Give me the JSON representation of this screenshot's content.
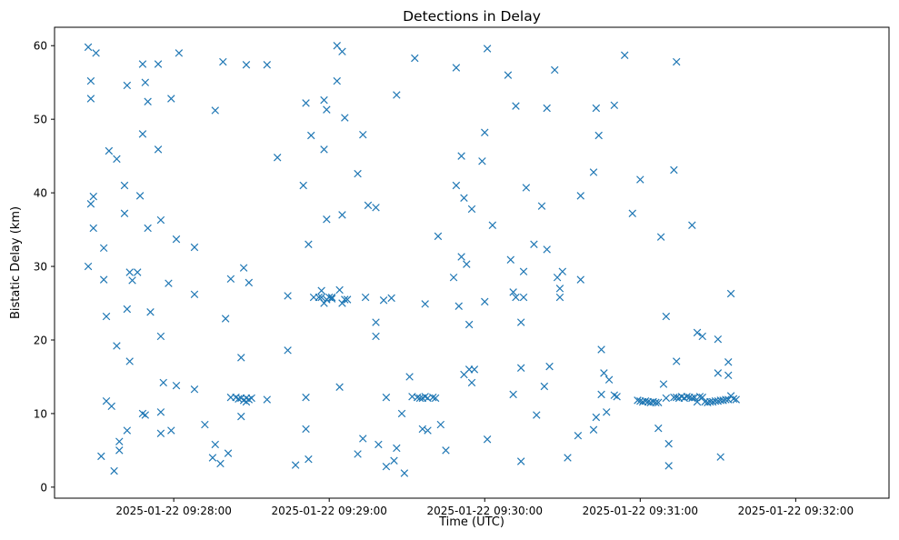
{
  "chart_data": {
    "type": "scatter",
    "title": "Detections in Delay",
    "xlabel": "Time (UTC)",
    "ylabel": "Bistatic Delay (km)",
    "x_unit": "time",
    "xlim": [
      "2025-01-22 09:27:14",
      "2025-01-22 09:32:36"
    ],
    "ylim": [
      -1.5,
      62.5
    ],
    "x_ticks": [
      "2025-01-22 09:28:00",
      "2025-01-22 09:29:00",
      "2025-01-22 09:30:00",
      "2025-01-22 09:31:00",
      "2025-01-22 09:32:00"
    ],
    "y_ticks": [
      0,
      10,
      20,
      30,
      40,
      50,
      60
    ],
    "marker": "x",
    "color": "#1f77b4",
    "grid": false,
    "legend": "none",
    "series": [
      {
        "points": [
          [
            "09:27:27",
            30
          ],
          [
            "09:27:27",
            59.8
          ],
          [
            "09:27:28",
            38.5
          ],
          [
            "09:27:28",
            55.2
          ],
          [
            "09:27:28",
            52.8
          ],
          [
            "09:27:29",
            39.5
          ],
          [
            "09:27:29",
            35.2
          ],
          [
            "09:27:30",
            59
          ],
          [
            "09:27:32",
            4.2
          ],
          [
            "09:27:33",
            32.5
          ],
          [
            "09:27:33",
            28.2
          ],
          [
            "09:27:34",
            11.7
          ],
          [
            "09:27:34",
            23.2
          ],
          [
            "09:27:35",
            45.7
          ],
          [
            "09:27:36",
            11
          ],
          [
            "09:27:37",
            2.2
          ],
          [
            "09:27:38",
            19.2
          ],
          [
            "09:27:38",
            44.6
          ],
          [
            "09:27:39",
            6.2
          ],
          [
            "09:27:39",
            5
          ],
          [
            "09:27:41",
            37.2
          ],
          [
            "09:27:41",
            41
          ],
          [
            "09:27:42",
            24.2
          ],
          [
            "09:27:42",
            7.7
          ],
          [
            "09:27:42",
            54.6
          ],
          [
            "09:27:43",
            17.1
          ],
          [
            "09:27:43",
            29.2
          ],
          [
            "09:27:44",
            28.1
          ],
          [
            "09:27:46",
            29.2
          ],
          [
            "09:27:47",
            39.6
          ],
          [
            "09:27:48",
            10
          ],
          [
            "09:27:48",
            57.5
          ],
          [
            "09:27:48",
            48
          ],
          [
            "09:27:49",
            9.8
          ],
          [
            "09:27:49",
            55
          ],
          [
            "09:27:50",
            52.4
          ],
          [
            "09:27:50",
            35.2
          ],
          [
            "09:27:51",
            23.8
          ],
          [
            "09:27:54",
            57.5
          ],
          [
            "09:27:54",
            45.9
          ],
          [
            "09:27:55",
            36.3
          ],
          [
            "09:27:55",
            20.5
          ],
          [
            "09:27:55",
            7.3
          ],
          [
            "09:27:55",
            10.2
          ],
          [
            "09:27:56",
            14.2
          ],
          [
            "09:27:58",
            27.7
          ],
          [
            "09:27:59",
            52.8
          ],
          [
            "09:27:59",
            7.7
          ],
          [
            "09:28:01",
            33.7
          ],
          [
            "09:28:01",
            13.8
          ],
          [
            "09:28:02",
            59
          ],
          [
            "09:28:08",
            13.3
          ],
          [
            "09:28:08",
            26.2
          ],
          [
            "09:28:08",
            32.6
          ],
          [
            "09:28:12",
            8.5
          ],
          [
            "09:28:15",
            4
          ],
          [
            "09:28:16",
            51.2
          ],
          [
            "09:28:16",
            5.8
          ],
          [
            "09:28:18",
            3.2
          ],
          [
            "09:28:19",
            57.8
          ],
          [
            "09:28:20",
            22.9
          ],
          [
            "09:28:21",
            4.6
          ],
          [
            "09:28:22",
            28.3
          ],
          [
            "09:28:22",
            12.2
          ],
          [
            "09:28:24",
            12.2
          ],
          [
            "09:28:25",
            12
          ],
          [
            "09:28:26",
            9.6
          ],
          [
            "09:28:26",
            17.6
          ],
          [
            "09:28:26",
            12.1
          ],
          [
            "09:28:27",
            29.8
          ],
          [
            "09:28:27",
            11.8
          ],
          [
            "09:28:28",
            57.4
          ],
          [
            "09:28:28",
            11.6
          ],
          [
            "09:28:28",
            12.1
          ],
          [
            "09:28:29",
            27.8
          ],
          [
            "09:28:29",
            11.9
          ],
          [
            "09:28:30",
            12.1
          ],
          [
            "09:28:36",
            57.4
          ],
          [
            "09:28:36",
            11.9
          ],
          [
            "09:28:40",
            44.8
          ],
          [
            "09:28:44",
            26
          ],
          [
            "09:28:44",
            18.6
          ],
          [
            "09:28:47",
            3
          ],
          [
            "09:28:50",
            41
          ],
          [
            "09:28:51",
            52.2
          ],
          [
            "09:28:51",
            12.2
          ],
          [
            "09:28:51",
            7.9
          ],
          [
            "09:28:52",
            33
          ],
          [
            "09:28:52",
            3.8
          ],
          [
            "09:28:53",
            47.8
          ],
          [
            "09:28:54",
            25.8
          ],
          [
            "09:28:56",
            25.8
          ],
          [
            "09:28:57",
            26.7
          ],
          [
            "09:28:57",
            25.8
          ],
          [
            "09:28:58",
            25
          ],
          [
            "09:28:58",
            45.9
          ],
          [
            "09:28:58",
            52.6
          ],
          [
            "09:28:59",
            51.3
          ],
          [
            "09:28:59",
            36.4
          ],
          [
            "09:28:59",
            25.5
          ],
          [
            "09:29:00",
            25.8
          ],
          [
            "09:29:01",
            25.6
          ],
          [
            "09:29:01",
            25.8
          ],
          [
            "09:29:03",
            60
          ],
          [
            "09:29:03",
            55.2
          ],
          [
            "09:29:04",
            13.6
          ],
          [
            "09:29:04",
            26.8
          ],
          [
            "09:29:05",
            25
          ],
          [
            "09:29:05",
            37
          ],
          [
            "09:29:05",
            59.2
          ],
          [
            "09:29:06",
            25.5
          ],
          [
            "09:29:06",
            50.2
          ],
          [
            "09:29:07",
            25.5
          ],
          [
            "09:29:11",
            42.6
          ],
          [
            "09:29:11",
            4.5
          ],
          [
            "09:29:13",
            47.9
          ],
          [
            "09:29:13",
            6.6
          ],
          [
            "09:29:14",
            25.8
          ],
          [
            "09:29:15",
            38.3
          ],
          [
            "09:29:18",
            22.4
          ],
          [
            "09:29:18",
            38
          ],
          [
            "09:29:18",
            20.5
          ],
          [
            "09:29:19",
            5.8
          ],
          [
            "09:29:21",
            25.4
          ],
          [
            "09:29:22",
            12.2
          ],
          [
            "09:29:22",
            2.8
          ],
          [
            "09:29:24",
            25.7
          ],
          [
            "09:29:25",
            3.6
          ],
          [
            "09:29:26",
            5.3
          ],
          [
            "09:29:26",
            53.3
          ],
          [
            "09:29:28",
            10
          ],
          [
            "09:29:29",
            1.9
          ],
          [
            "09:29:31",
            15
          ],
          [
            "09:29:32",
            12.3
          ],
          [
            "09:29:33",
            58.3
          ],
          [
            "09:29:34",
            12.2
          ],
          [
            "09:29:35",
            12.1
          ],
          [
            "09:29:36",
            12.1
          ],
          [
            "09:29:36",
            7.9
          ],
          [
            "09:29:37",
            12.3
          ],
          [
            "09:29:37",
            24.9
          ],
          [
            "09:29:38",
            12.1
          ],
          [
            "09:29:38",
            7.7
          ],
          [
            "09:29:40",
            12.2
          ],
          [
            "09:29:41",
            12.1
          ],
          [
            "09:29:42",
            34.1
          ],
          [
            "09:29:43",
            8.5
          ],
          [
            "09:29:45",
            5
          ],
          [
            "09:29:48",
            28.5
          ],
          [
            "09:29:49",
            41
          ],
          [
            "09:29:49",
            57
          ],
          [
            "09:29:50",
            24.6
          ],
          [
            "09:29:51",
            45
          ],
          [
            "09:29:51",
            31.3
          ],
          [
            "09:29:52",
            15.3
          ],
          [
            "09:29:52",
            39.3
          ],
          [
            "09:29:53",
            30.3
          ],
          [
            "09:29:54",
            16
          ],
          [
            "09:29:54",
            22.1
          ],
          [
            "09:29:55",
            37.8
          ],
          [
            "09:29:55",
            14.2
          ],
          [
            "09:29:56",
            16
          ],
          [
            "09:29:59",
            44.3
          ],
          [
            "09:30:00",
            48.2
          ],
          [
            "09:30:00",
            25.2
          ],
          [
            "09:30:01",
            6.5
          ],
          [
            "09:30:01",
            59.6
          ],
          [
            "09:30:03",
            35.6
          ],
          [
            "09:30:09",
            56
          ],
          [
            "09:30:10",
            30.9
          ],
          [
            "09:30:11",
            12.6
          ],
          [
            "09:30:11",
            26.5
          ],
          [
            "09:30:12",
            51.8
          ],
          [
            "09:30:12",
            25.8
          ],
          [
            "09:30:14",
            22.4
          ],
          [
            "09:30:14",
            16.2
          ],
          [
            "09:30:14",
            3.5
          ],
          [
            "09:30:15",
            25.8
          ],
          [
            "09:30:15",
            29.3
          ],
          [
            "09:30:16",
            40.7
          ],
          [
            "09:30:19",
            33
          ],
          [
            "09:30:20",
            9.8
          ],
          [
            "09:30:22",
            38.2
          ],
          [
            "09:30:23",
            13.7
          ],
          [
            "09:30:24",
            32.3
          ],
          [
            "09:30:24",
            51.5
          ],
          [
            "09:30:25",
            16.4
          ],
          [
            "09:30:27",
            56.7
          ],
          [
            "09:30:28",
            28.5
          ],
          [
            "09:30:29",
            25.8
          ],
          [
            "09:30:29",
            27
          ],
          [
            "09:30:30",
            29.3
          ],
          [
            "09:30:32",
            4
          ],
          [
            "09:30:36",
            7
          ],
          [
            "09:30:37",
            28.2
          ],
          [
            "09:30:37",
            39.6
          ],
          [
            "09:30:42",
            42.8
          ],
          [
            "09:30:42",
            7.8
          ],
          [
            "09:30:43",
            51.5
          ],
          [
            "09:30:43",
            9.5
          ],
          [
            "09:30:44",
            47.8
          ],
          [
            "09:30:45",
            18.7
          ],
          [
            "09:30:45",
            12.6
          ],
          [
            "09:30:46",
            15.5
          ],
          [
            "09:30:47",
            10.2
          ],
          [
            "09:30:48",
            14.6
          ],
          [
            "09:30:50",
            51.9
          ],
          [
            "09:30:50",
            12.5
          ],
          [
            "09:30:51",
            12.3
          ],
          [
            "09:30:54",
            58.7
          ],
          [
            "09:30:57",
            37.2
          ],
          [
            "09:30:59",
            11.8
          ],
          [
            "09:31:00",
            41.8
          ],
          [
            "09:31:00",
            11.7
          ],
          [
            "09:31:01",
            11.6
          ],
          [
            "09:31:02",
            11.7
          ],
          [
            "09:31:03",
            11.6
          ],
          [
            "09:31:04",
            11.5
          ],
          [
            "09:31:05",
            11.6
          ],
          [
            "09:31:06",
            11.5
          ],
          [
            "09:31:07",
            8
          ],
          [
            "09:31:07",
            11.5
          ],
          [
            "09:31:08",
            34
          ],
          [
            "09:31:09",
            14
          ],
          [
            "09:31:10",
            23.2
          ],
          [
            "09:31:10",
            12.1
          ],
          [
            "09:31:11",
            5.9
          ],
          [
            "09:31:11",
            2.9
          ],
          [
            "09:31:13",
            43.1
          ],
          [
            "09:31:13",
            12.2
          ],
          [
            "09:31:14",
            57.8
          ],
          [
            "09:31:14",
            17.1
          ],
          [
            "09:31:14",
            12.2
          ],
          [
            "09:31:15",
            12.1
          ],
          [
            "09:31:16",
            12.3
          ],
          [
            "09:31:17",
            12.1
          ],
          [
            "09:31:18",
            12.3
          ],
          [
            "09:31:19",
            12.2
          ],
          [
            "09:31:20",
            35.6
          ],
          [
            "09:31:20",
            12.1
          ],
          [
            "09:31:21",
            12.2
          ],
          [
            "09:31:22",
            21
          ],
          [
            "09:31:22",
            11.6
          ],
          [
            "09:31:23",
            12.3
          ],
          [
            "09:31:24",
            20.5
          ],
          [
            "09:31:24",
            12.2
          ],
          [
            "09:31:25",
            11.6
          ],
          [
            "09:31:26",
            11.5
          ],
          [
            "09:31:27",
            11.6
          ],
          [
            "09:31:28",
            11.6
          ],
          [
            "09:31:29",
            11.7
          ],
          [
            "09:31:30",
            15.5
          ],
          [
            "09:31:30",
            20.1
          ],
          [
            "09:31:30",
            11.7
          ],
          [
            "09:31:31",
            4.1
          ],
          [
            "09:31:31",
            11.8
          ],
          [
            "09:31:32",
            11.8
          ],
          [
            "09:31:33",
            11.9
          ],
          [
            "09:31:34",
            17
          ],
          [
            "09:31:34",
            15.2
          ],
          [
            "09:31:34",
            11.9
          ],
          [
            "09:31:35",
            26.3
          ],
          [
            "09:31:35",
            12.4
          ],
          [
            "09:31:36",
            12
          ],
          [
            "09:31:37",
            11.9
          ]
        ]
      }
    ]
  }
}
